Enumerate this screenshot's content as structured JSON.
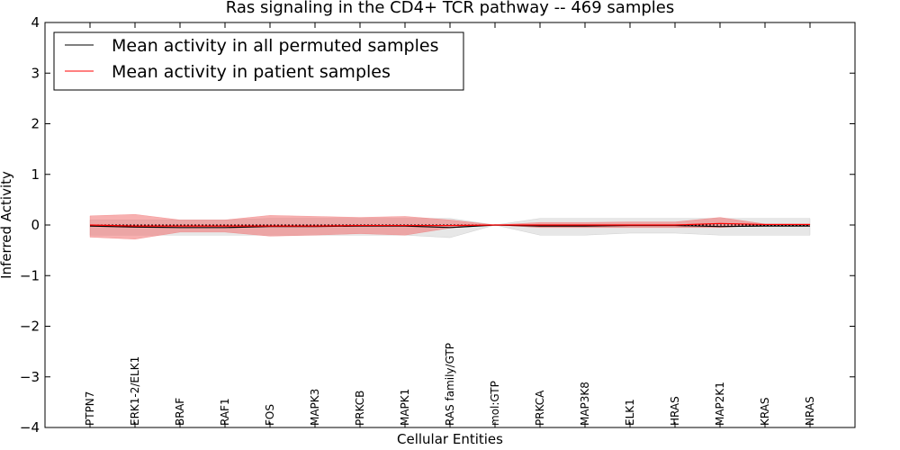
{
  "chart_data": {
    "type": "line",
    "title": "Ras signaling in the CD4+ TCR pathway -- 469 samples",
    "xlabel": "Cellular Entities",
    "ylabel": "Inferred Activity",
    "ylim": [
      -4,
      4
    ],
    "yticks": [
      -4,
      -3,
      -2,
      -1,
      0,
      1,
      2,
      3,
      4
    ],
    "ytick_labels": [
      "−4",
      "−3",
      "−2",
      "−1",
      "0",
      "1",
      "2",
      "3",
      "4"
    ],
    "categories": [
      "PTPN7",
      "ERK1-2/ELK1",
      "BRAF",
      "RAF1",
      "FOS",
      "MAPK3",
      "PRKCB",
      "MAPK1",
      "RAS family/GTP",
      "mol:GTP",
      "PRKCA",
      "MAP3K8",
      "ELK1",
      "HRAS",
      "MAP2K1",
      "KRAS",
      "NRAS"
    ],
    "legend_position": "top-left",
    "series": [
      {
        "name": "Mean activity in all permuted samples",
        "color": "#000000",
        "values": [
          -0.02,
          -0.04,
          -0.05,
          -0.05,
          -0.03,
          -0.03,
          -0.02,
          -0.02,
          -0.05,
          0.0,
          -0.02,
          -0.02,
          -0.01,
          -0.01,
          -0.03,
          -0.02,
          -0.02
        ],
        "band_upper": [
          0.1,
          0.1,
          0.1,
          0.1,
          0.13,
          0.13,
          0.13,
          0.13,
          0.13,
          0.0,
          0.13,
          0.13,
          0.13,
          0.13,
          0.13,
          0.13,
          0.13
        ],
        "band_lower": [
          -0.2,
          -0.2,
          -0.2,
          -0.2,
          -0.2,
          -0.2,
          -0.2,
          -0.2,
          -0.25,
          0.0,
          -0.2,
          -0.2,
          -0.16,
          -0.16,
          -0.2,
          -0.2,
          -0.2
        ],
        "band_color": "#bbbbbb"
      },
      {
        "name": "Mean activity in patient samples",
        "color": "#ff0000",
        "values": [
          0.0,
          -0.02,
          -0.02,
          -0.02,
          -0.02,
          -0.02,
          -0.01,
          -0.01,
          -0.01,
          0.0,
          0.0,
          0.0,
          0.0,
          0.0,
          0.03,
          0.01,
          0.01
        ],
        "band_upper": [
          0.18,
          0.21,
          0.1,
          0.1,
          0.19,
          0.17,
          0.15,
          0.17,
          0.1,
          0.0,
          0.05,
          0.05,
          0.06,
          0.06,
          0.15,
          0.02,
          0.02
        ],
        "band_lower": [
          -0.24,
          -0.28,
          -0.14,
          -0.14,
          -0.22,
          -0.2,
          -0.17,
          -0.2,
          -0.06,
          0.0,
          -0.05,
          -0.05,
          -0.05,
          -0.05,
          -0.05,
          0.0,
          0.0
        ],
        "band_color": "#f07070"
      }
    ]
  }
}
